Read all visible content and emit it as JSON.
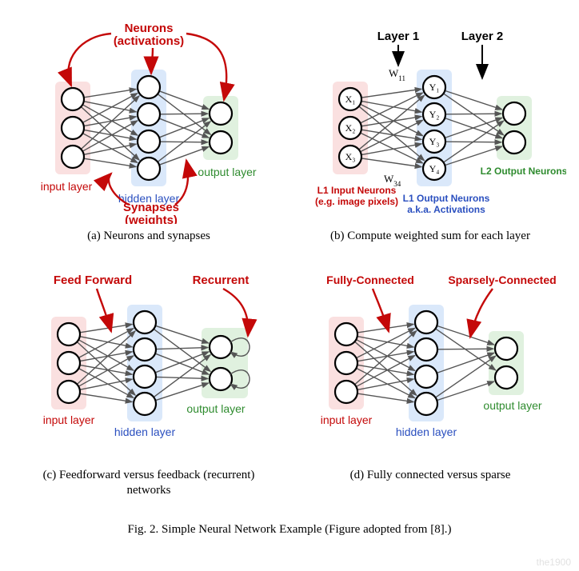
{
  "colors": {
    "neuron_stroke": "#000000",
    "neuron_fill": "#ffffff",
    "edge": "#555555",
    "input_box": "#f5c6c6",
    "hidden_box": "#bcd6f6",
    "output_box": "#c7e5c4",
    "annot_red": "#c40808",
    "label_input": "#c40808",
    "label_hidden": "#2a4fbf",
    "label_output": "#2e8b2e",
    "text_black": "#000000",
    "box_alpha": 0.55
  },
  "geometry": {
    "neuron_r": 14,
    "box_rx": 6,
    "edge_width": 1.4,
    "neuron_stroke_width": 2.2
  },
  "panelA": {
    "title": "(a)  Neurons and synapses",
    "annot_neurons": "Neurons\n(activations)",
    "annot_synapses": "Synapses\n(weights)",
    "label_input": "input layer",
    "label_hidden": "hidden layer",
    "label_output": "output layer",
    "input_n": 3,
    "hidden_n": 4,
    "output_n": 2
  },
  "panelB": {
    "title": "(b)  Compute weighted sum for each layer",
    "label_layer1": "Layer 1",
    "label_layer2": "Layer 2",
    "w11": "W",
    "w11_sub": "11",
    "w34": "W",
    "w34_sub": "34",
    "x_labels": [
      "X₁",
      "X₂",
      "X₃"
    ],
    "y_labels": [
      "Y₁",
      "Y₂",
      "Y₃",
      "Y₄"
    ],
    "label_l1in_a": "L1 Input Neurons",
    "label_l1in_b": "(e.g. image pixels)",
    "label_l1out_a": "L1 Output Neurons",
    "label_l1out_b": "a.k.a. Activations",
    "label_l2out": "L2 Output Neurons"
  },
  "panelC": {
    "title": "(c)  Feedforward versus feedback (recurrent) networks",
    "annot_ff": "Feed Forward",
    "annot_rec": "Recurrent",
    "label_input": "input layer",
    "label_hidden": "hidden layer",
    "label_output": "output layer"
  },
  "panelD": {
    "title": "(d)  Fully connected versus sparse",
    "annot_fc": "Fully-Connected",
    "annot_sc": "Sparsely-Connected",
    "label_input": "input layer",
    "label_hidden": "hidden layer",
    "label_output": "output layer",
    "sparse_edges": [
      [
        0,
        0
      ],
      [
        0,
        1
      ],
      [
        1,
        0
      ],
      [
        2,
        0
      ],
      [
        3,
        0
      ],
      [
        3,
        1
      ]
    ]
  },
  "figcaption": "Fig. 2.    Simple Neural Network Example (Figure adopted from [8].)",
  "watermark": "the1900"
}
